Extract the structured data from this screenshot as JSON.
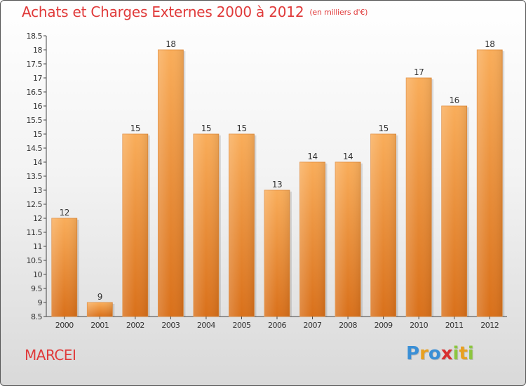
{
  "title": "Achats et Charges Externes 2000 à 2012",
  "unit": "(en milliers d'€)",
  "town": "MARCEI",
  "logo": {
    "letters": [
      "P",
      "r",
      "o",
      "x",
      "i",
      "t",
      "i"
    ],
    "colors": [
      "#3a8fd6",
      "#e8a020",
      "#3a8fd6",
      "#d83030",
      "#8cc63f",
      "#e8a020",
      "#8cc63f"
    ]
  },
  "colors": {
    "bar": "#f0882a",
    "bar_light": "#f8aa55",
    "bar_dark": "#d96f12",
    "title": "#e03a3a"
  },
  "chart_data": {
    "type": "bar",
    "categories": [
      "2000",
      "2001",
      "2002",
      "2003",
      "2004",
      "2005",
      "2006",
      "2007",
      "2008",
      "2009",
      "2010",
      "2011",
      "2012"
    ],
    "values": [
      12,
      9,
      15,
      18,
      15,
      15,
      13,
      14,
      14,
      15,
      17,
      16,
      18
    ],
    "ylim": [
      8.5,
      18.5
    ],
    "yticks": [
      "8.5",
      "9",
      "9.5",
      "10",
      "10.5",
      "11",
      "11.5",
      "12",
      "12.5",
      "13",
      "13.5",
      "14",
      "14.5",
      "15",
      "15.5",
      "16",
      "16.5",
      "17",
      "17.5",
      "18",
      "18.5"
    ],
    "title": "Achats et Charges Externes 2000 à 2012",
    "xlabel": "",
    "ylabel": "",
    "grid": false
  }
}
